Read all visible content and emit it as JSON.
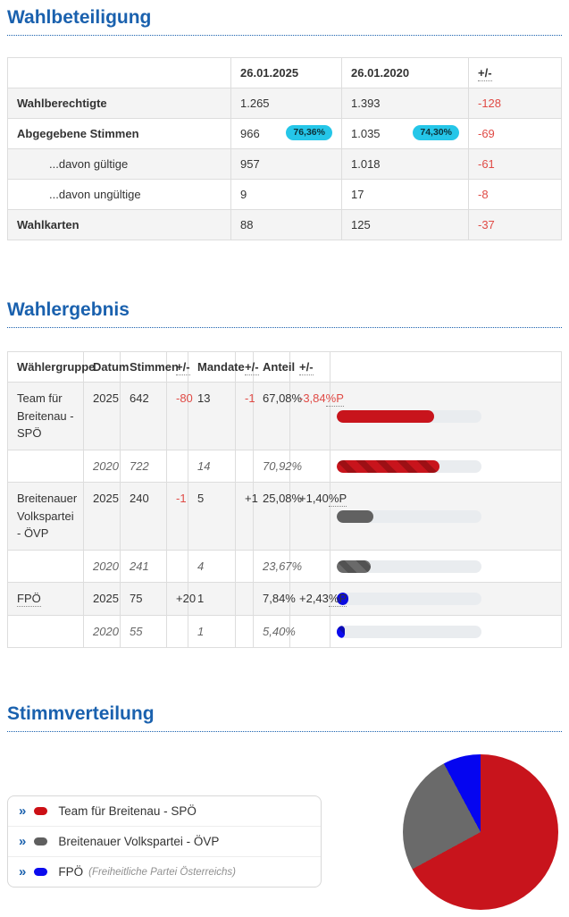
{
  "accent_color": "#1a61ae",
  "turnout": {
    "title": "Wahlbeteiligung",
    "columns": [
      "",
      "26.01.2025",
      "26.01.2020",
      "+/-"
    ],
    "rows": [
      {
        "label": "Wahlberechtigte",
        "v2025": "1.265",
        "v2020": "1.393",
        "diff": "-128"
      },
      {
        "label": "Abgegebene Stimmen",
        "v2025": "966",
        "badge2025": "76,36%",
        "v2020": "1.035",
        "badge2020": "74,30%",
        "diff": "-69"
      },
      {
        "label": "...davon gültige",
        "v2025": "957",
        "v2020": "1.018",
        "diff": "-61"
      },
      {
        "label": "...davon ungültige",
        "v2025": "9",
        "v2020": "17",
        "diff": "-8"
      },
      {
        "label": "Wahlkarten",
        "v2025": "88",
        "v2020": "125",
        "diff": "-37"
      }
    ],
    "badge_bg": "#25c6e8",
    "negative_color": "#e04b46"
  },
  "results": {
    "title": "Wahlergebnis",
    "columns": [
      "Wählergruppe",
      "Datum",
      "Stimmen",
      "+/-",
      "Mandate",
      "+/-",
      "Anteil",
      "+/-",
      ""
    ],
    "rows": [
      {
        "group": "Team für Breitenau - SPÖ",
        "year": "2025",
        "votes": "642",
        "votes_diff": "-80",
        "mandates": "13",
        "mandates_diff": "-1",
        "share": "67,08%",
        "share_diff": "-3,84",
        "share_diff_unit": "%P",
        "share_pct": 67.08,
        "color": "#c8141c",
        "stripe_color": "#9d1015",
        "striped": false
      },
      {
        "group": "",
        "year": "2020",
        "votes": "722",
        "votes_diff": "",
        "mandates": "14",
        "mandates_diff": "",
        "share": "70,92%",
        "share_diff": "",
        "share_diff_unit": "",
        "share_pct": 70.92,
        "color": "#c8141c",
        "stripe_color": "#9d1015",
        "striped": true
      },
      {
        "group": "Breitenauer Volkspartei - ÖVP",
        "year": "2025",
        "votes": "240",
        "votes_diff": "-1",
        "mandates": "5",
        "mandates_diff": "+1",
        "share": "25,08%",
        "share_diff": "+1,40",
        "share_diff_unit": "%P",
        "share_pct": 25.08,
        "color": "#616161",
        "stripe_color": "#4f4f4f",
        "striped": false
      },
      {
        "group": "",
        "year": "2020",
        "votes": "241",
        "votes_diff": "",
        "mandates": "4",
        "mandates_diff": "",
        "share": "23,67%",
        "share_diff": "",
        "share_diff_unit": "",
        "share_pct": 23.67,
        "color": "#6a6a6a",
        "stripe_color": "#525252",
        "striped": true
      },
      {
        "group": "FPÖ",
        "year": "2025",
        "votes": "75",
        "votes_diff": "+20",
        "mandates": "1",
        "mandates_diff": "",
        "share": "7,84%",
        "share_diff": "+2,43",
        "share_diff_unit": "%P",
        "share_pct": 7.84,
        "color": "#0b0be0",
        "stripe_color": "#0909b4",
        "striped": false
      },
      {
        "group": "",
        "year": "2020",
        "votes": "55",
        "votes_diff": "",
        "mandates": "1",
        "mandates_diff": "",
        "share": "5,40%",
        "share_diff": "",
        "share_diff_unit": "",
        "share_pct": 5.4,
        "color": "#0b0bee",
        "stripe_color": "#0909b4",
        "striped": true
      }
    ]
  },
  "distribution": {
    "title": "Stimmverteilung",
    "legend": [
      {
        "chevron": "»",
        "label": "Team für Breitenau - SPÖ",
        "sub": "",
        "color": "#cc0f15"
      },
      {
        "chevron": "»",
        "label": "Breitenauer Volkspartei - ÖVP",
        "sub": "",
        "color": "#5f5f5f"
      },
      {
        "chevron": "»",
        "label": "FPÖ",
        "sub": "(Freiheitliche Partei Österreichs)",
        "color": "#0b0bee"
      }
    ]
  },
  "chart_data": {
    "type": "pie",
    "title": "Stimmverteilung",
    "labels": [
      "Team für Breitenau - SPÖ",
      "Breitenauer Volkspartei - ÖVP",
      "FPÖ"
    ],
    "values": [
      67.08,
      25.08,
      7.84
    ],
    "colors": [
      "#c8141c",
      "#6a6a6a",
      "#0505f0"
    ],
    "start_angle_deg": 0,
    "direction": "clockwise",
    "legend_position": "left",
    "related_bars": {
      "type": "bar",
      "categories": [
        "SPÖ 2025",
        "SPÖ 2020",
        "ÖVP 2025",
        "ÖVP 2020",
        "FPÖ 2025",
        "FPÖ 2020"
      ],
      "values": [
        67.08,
        70.92,
        25.08,
        23.67,
        7.84,
        5.4
      ],
      "xlim": [
        0,
        100
      ],
      "unit": "%"
    }
  }
}
